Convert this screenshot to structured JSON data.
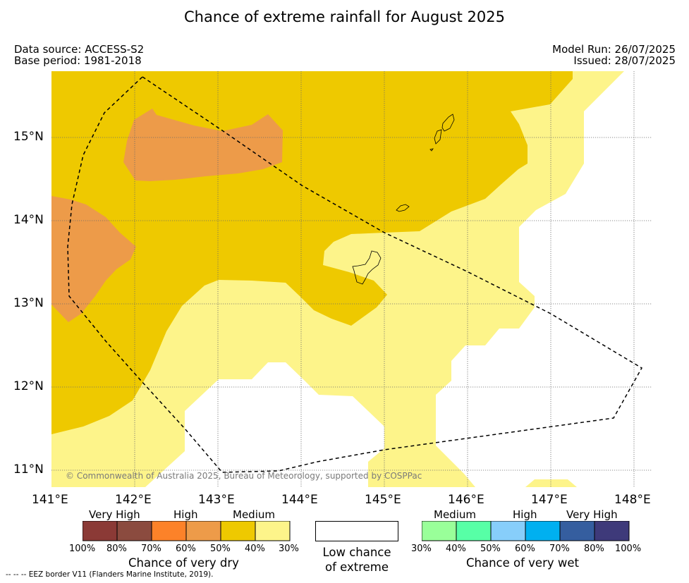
{
  "title": "Chance of extreme rainfall for August 2025",
  "meta": {
    "data_source": "Data source: ACCESS-S2",
    "base_period": "Base period: 1981-2018",
    "model_run": "Model Run: 26/07/2025",
    "issued": "Issued: 28/07/2025"
  },
  "axes": {
    "lon_labels": [
      "141°E",
      "142°E",
      "143°E",
      "144°E",
      "145°E",
      "146°E",
      "147°E",
      "148°E"
    ],
    "lat_labels": [
      "15°N",
      "14°N",
      "13°N",
      "12°N",
      "11°N"
    ],
    "lon_range": [
      141.0,
      148.2
    ],
    "lat_range": [
      10.8,
      15.78
    ],
    "grid": true
  },
  "map": {
    "copyright": "© Commonwealth of Australia 2025, Bureau of Meteorology, supported by COSPPac",
    "colors": {
      "dry_high_60_70": "#ed9b49",
      "dry_medium_40_50": "#eec900",
      "dry_medium_30_40": "#fdf48a",
      "low_chance": "#ffffff",
      "eez_border": "#000000"
    }
  },
  "legend": {
    "dry": {
      "group_labels": [
        "Very High",
        "High",
        "Medium"
      ],
      "percent_labels": [
        "100%",
        "80%",
        "70%",
        "60%",
        "50%",
        "40%",
        "30%"
      ],
      "colors": [
        "#8b3a36",
        "#8b4b3f",
        "#fc8229",
        "#ed9b49",
        "#eec900",
        "#fdf48a"
      ],
      "title": "Chance of very dry"
    },
    "low": {
      "title_line1": "Low chance",
      "title_line2": "of extreme"
    },
    "wet": {
      "group_labels": [
        "Medium",
        "High",
        "Very High"
      ],
      "percent_labels": [
        "30%",
        "40%",
        "50%",
        "60%",
        "70%",
        "80%",
        "100%"
      ],
      "colors": [
        "#99ff99",
        "#57ffa6",
        "#87cefa",
        "#00b0f0",
        "#355e9f",
        "#3e3a7a"
      ],
      "title": "Chance of very wet"
    }
  },
  "footnote": "--  --  -- EEZ border V11 (Flanders Marine Institute, 2019)."
}
